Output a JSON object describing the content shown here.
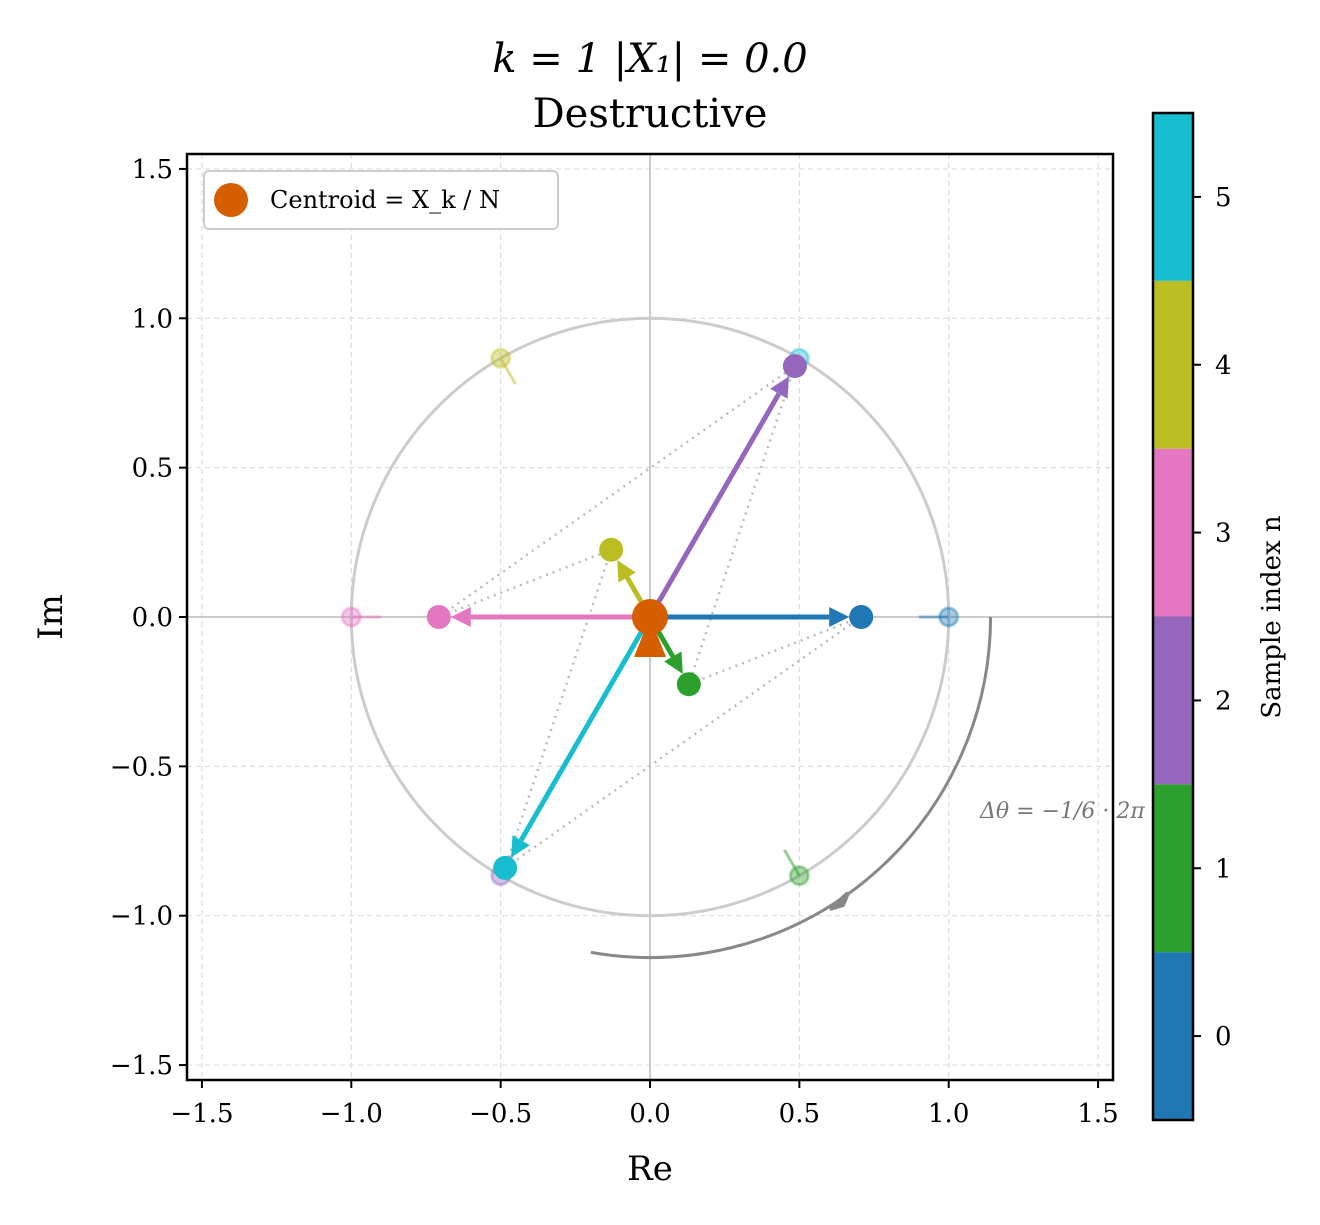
{
  "chart_data": {
    "type": "scatter",
    "title": "k = 1    |X₁| = 0.0",
    "subtitle": "Destructive",
    "title_color": "#cc79a7",
    "xlabel": "Re",
    "ylabel": "Im",
    "xlim": [
      -1.55,
      1.55
    ],
    "ylim": [
      -1.55,
      1.55
    ],
    "xticks": [
      "−1.5",
      "−1.0",
      "−0.5",
      "0.0",
      "0.5",
      "1.0",
      "1.5"
    ],
    "xtick_values": [
      -1.5,
      -1.0,
      -0.5,
      0.0,
      0.5,
      1.0,
      1.5
    ],
    "yticks": [
      "−1.5",
      "−1.0",
      "−0.5",
      "0.0",
      "0.5",
      "1.0",
      "1.5"
    ],
    "ytick_values": [
      -1.5,
      -1.0,
      -0.5,
      0.0,
      0.5,
      1.0,
      1.5
    ],
    "grid": true,
    "unit_circle": true,
    "legend": {
      "placement": "top-left",
      "label": "Centroid = X_k / N",
      "color": "#d55e00"
    },
    "centroid": {
      "re": 0.0,
      "im": 0.0
    },
    "samples": [
      {
        "n": 0,
        "re": 0.707,
        "im": 0.0,
        "unit_re": 1.0,
        "unit_im": 0.0,
        "color": "#1f77b4"
      },
      {
        "n": 1,
        "re": 0.13,
        "im": -0.225,
        "unit_re": 0.5,
        "unit_im": -0.866,
        "color": "#2ca02c"
      },
      {
        "n": 2,
        "re": 0.485,
        "im": 0.84,
        "unit_re": -0.5,
        "unit_im": -0.866,
        "color": "#9467bd"
      },
      {
        "n": 3,
        "re": -0.707,
        "im": 0.0,
        "unit_re": -1.0,
        "unit_im": 0.0,
        "color": "#e377c2"
      },
      {
        "n": 4,
        "re": -0.13,
        "im": 0.225,
        "unit_re": -0.5,
        "unit_im": 0.866,
        "color": "#bcbd22"
      },
      {
        "n": 5,
        "re": -0.485,
        "im": -0.84,
        "unit_re": 0.5,
        "unit_im": 0.866,
        "color": "#17becf"
      }
    ],
    "annotation": "Δθ = −1/6 · 2π",
    "colorbar": {
      "label": "Sample index n",
      "ticks": [
        "0",
        "1",
        "2",
        "3",
        "4",
        "5"
      ]
    }
  }
}
